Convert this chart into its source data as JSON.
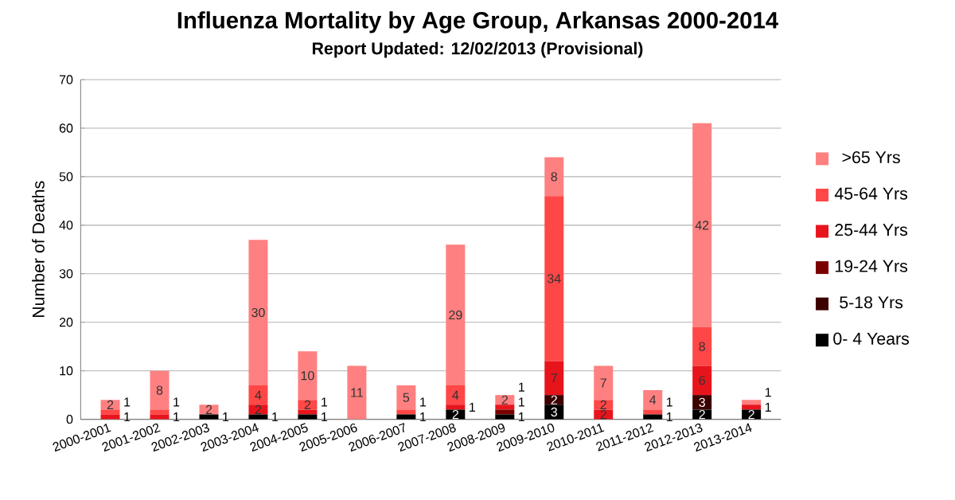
{
  "chart_data": {
    "type": "bar",
    "stacked": true,
    "title": "Influenza Mortality by Age Group, Arkansas 2000-2014",
    "subtitle": "Report Updated:  12/02/2013 (Provisional)",
    "ylabel": "Number of Deaths",
    "categories": [
      "2000-2001",
      "2001-2002",
      "2002-2003",
      "2003-2004",
      "2004-2005",
      "2005-2006",
      "2006-2007",
      "2007-2008",
      "2008-2009",
      "2009-2010",
      "2010-2011",
      "2011-2012",
      "2012-2013",
      "2013-2014"
    ],
    "series": [
      {
        "name": "0- 4 Years",
        "color": "#000000",
        "values": [
          null,
          null,
          1,
          1,
          1,
          null,
          1,
          2,
          1,
          3,
          null,
          1,
          2,
          2
        ]
      },
      {
        "name": "5-18 Yrs",
        "color": "#3d0000",
        "values": [
          null,
          null,
          null,
          null,
          null,
          null,
          null,
          null,
          null,
          2,
          null,
          null,
          3,
          null
        ]
      },
      {
        "name": "19-24 Yrs",
        "color": "#7a0000",
        "values": [
          null,
          null,
          null,
          null,
          null,
          null,
          null,
          null,
          1,
          null,
          null,
          null,
          null,
          null
        ]
      },
      {
        "name": "25-44 Yrs",
        "color": "#e8141c",
        "values": [
          1,
          1,
          null,
          2,
          1,
          null,
          null,
          1,
          1,
          7,
          2,
          null,
          6,
          1
        ]
      },
      {
        "name": "45-64 Yrs",
        "color": "#ff4747",
        "values": [
          1,
          1,
          null,
          4,
          2,
          null,
          1,
          4,
          null,
          34,
          2,
          1,
          8,
          null
        ]
      },
      {
        "name": ">65 Yrs",
        "color": "#ff8080",
        "values": [
          2,
          8,
          2,
          30,
          10,
          11,
          5,
          29,
          2,
          8,
          7,
          4,
          42,
          1
        ]
      }
    ],
    "ylim": [
      0,
      70
    ],
    "yticks": [
      0,
      10,
      20,
      30,
      40,
      50,
      60,
      70
    ],
    "grid": "y",
    "legend": "right",
    "data_labels": true
  }
}
